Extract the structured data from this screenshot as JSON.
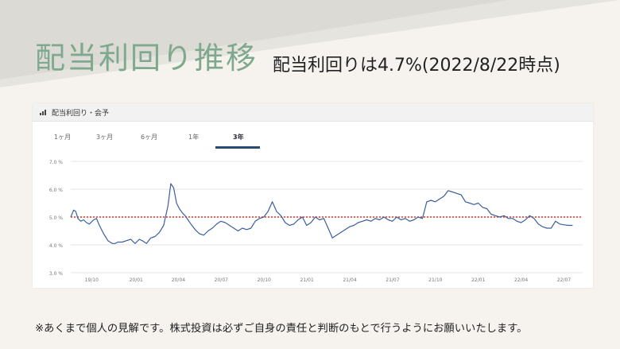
{
  "heading": {
    "title": "配当利回り推移",
    "subtitle": "配当利回りは4.7%(2022/8/22時点)"
  },
  "card": {
    "title": "配当利回り・会予",
    "icon": "signal-bars-icon",
    "tabs": [
      "1ヶ月",
      "3ヶ月",
      "6ヶ月",
      "1年",
      "3年"
    ],
    "active_tab": "3年"
  },
  "chart_data": {
    "type": "line",
    "ylim": [
      3.0,
      7.0
    ],
    "y_ticks": [
      "3.0 %",
      "4.0 %",
      "5.0 %",
      "6.0 %",
      "7.0 %"
    ],
    "x_ticks": [
      "19/10",
      "20/01",
      "20/04",
      "20/07",
      "20/10",
      "21/01",
      "21/04",
      "21/07",
      "21/10",
      "22/01",
      "22/04",
      "22/07"
    ],
    "reference_line": 5.0,
    "grid": true,
    "colors": {
      "line": "#3b5f9e",
      "reference": "#d9352b",
      "grid": "#e6e6e6"
    },
    "series": [
      {
        "x": [
          0.0,
          0.2,
          0.35,
          0.5,
          0.7,
          0.9,
          1.1,
          1.3,
          1.6,
          1.8,
          2.0,
          2.3,
          2.6,
          2.9,
          3.1,
          3.3,
          3.6,
          3.9,
          4.2,
          4.5,
          4.8,
          5.0,
          5.3,
          5.6,
          5.9,
          6.2,
          6.5,
          6.8,
          7.0,
          7.2,
          7.4,
          7.6,
          7.8,
          8.0,
          8.2,
          8.4,
          8.7,
          9.0,
          9.3,
          9.6,
          9.9,
          10.2,
          10.5,
          10.8,
          11.1,
          11.4,
          11.7,
          12.0,
          12.3,
          12.6,
          12.9,
          13.2,
          13.5,
          13.8,
          14.1,
          14.4,
          14.7,
          15.0,
          15.3,
          15.6,
          15.9,
          16.2,
          16.5,
          16.8,
          17.1,
          17.4,
          17.7,
          18.0,
          18.3,
          18.6,
          18.9,
          19.2,
          19.5,
          19.8,
          20.1,
          20.4,
          20.7,
          21.0,
          21.3,
          21.6,
          21.9,
          22.2,
          22.5,
          22.8,
          23.1,
          23.4,
          23.7,
          24.0,
          24.3,
          24.6,
          24.9,
          25.2,
          25.5,
          25.8,
          26.1,
          26.4,
          26.7,
          27.0,
          27.3,
          27.6,
          27.9,
          28.2,
          28.5,
          28.8,
          29.1,
          29.4,
          29.7,
          30.0,
          30.3,
          30.6,
          30.9,
          31.2,
          31.5,
          31.8,
          32.1,
          32.4,
          32.7,
          33.0,
          33.3,
          33.6,
          33.9,
          34.2,
          34.5,
          34.8,
          35.1
        ],
        "values": [
          5.0,
          5.25,
          5.2,
          4.95,
          4.85,
          4.9,
          4.8,
          4.75,
          4.9,
          4.95,
          4.7,
          4.4,
          4.15,
          4.05,
          4.05,
          4.1,
          4.1,
          4.15,
          4.2,
          4.05,
          4.2,
          4.15,
          4.05,
          4.25,
          4.3,
          4.45,
          4.7,
          5.4,
          6.2,
          6.05,
          5.5,
          5.3,
          5.15,
          5.05,
          4.9,
          4.75,
          4.55,
          4.4,
          4.35,
          4.5,
          4.6,
          4.75,
          4.85,
          4.8,
          4.7,
          4.6,
          4.5,
          4.6,
          4.55,
          4.6,
          4.85,
          4.95,
          5.0,
          5.2,
          5.55,
          5.2,
          5.05,
          4.8,
          4.7,
          4.75,
          4.9,
          5.0,
          4.7,
          4.8,
          5.0,
          4.9,
          4.95,
          4.6,
          4.25,
          4.35,
          4.45,
          4.55,
          4.65,
          4.7,
          4.8,
          4.85,
          4.9,
          4.85,
          4.95,
          4.9,
          5.0,
          4.9,
          4.85,
          5.0,
          4.9,
          4.95,
          4.85,
          4.9,
          5.0,
          4.95,
          5.55,
          5.6,
          5.55,
          5.65,
          5.75,
          5.95,
          5.9,
          5.85,
          5.8,
          5.55,
          5.5,
          5.45,
          5.5,
          5.35,
          5.3,
          5.1,
          5.05,
          5.0,
          5.05,
          4.95,
          4.95,
          4.85,
          4.8,
          4.9,
          5.05,
          4.95,
          4.75,
          4.65,
          4.6,
          4.6,
          4.85,
          4.75,
          4.72,
          4.7,
          4.7
        ]
      }
    ]
  },
  "footer": {
    "note": "※あくまで個人の見解です。株式投資は必ずご自身の責任と判断のもとで行うようにお願いいたします。"
  }
}
